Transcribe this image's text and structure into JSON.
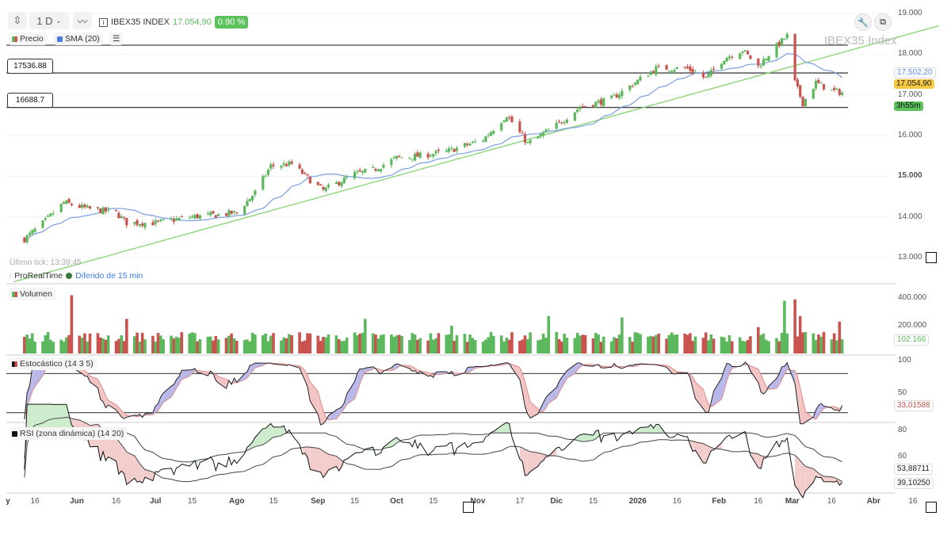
{
  "toolbar": {
    "timeframe": "1 D",
    "instrument": "IBEX35 INDEX",
    "last_price": "17.054,90",
    "change_pct": "0.90 %"
  },
  "legend": {
    "price": "Precio",
    "sma": "SMA (20)"
  },
  "watermark": "IBEX35 Index",
  "last_tick": "Último tick: 13:39:45",
  "provider": "ProRealTime",
  "delay_notice": "Diferido de 15 min",
  "level_labels": [
    "17536.88",
    "16688.7"
  ],
  "price_tags": {
    "sma": "17.502,20",
    "last": "17.054,90",
    "countdown": "3h55m"
  },
  "volume_tag": "102.166",
  "stoch_tag": "33,01588",
  "rsi_tags": [
    "53,88711",
    "39,10250"
  ],
  "colors": {
    "up": "#5cb85c",
    "down": "#c9534f",
    "sma": "#7a9fe0",
    "trend": "#8fd47a",
    "badge_green": "#5cc25c",
    "badge_yellow": "#f5c842"
  },
  "chart_data": {
    "type": "candlestick",
    "instrument": "IBEX35 Index",
    "timeframe": "1D",
    "price_axis": {
      "ticks": [
        "19.000",
        "18.000",
        "17.000",
        "16.000",
        "15.000",
        "14.000",
        "13.000"
      ],
      "values": [
        19000,
        18000,
        17000,
        16000,
        15000,
        14000,
        13000
      ],
      "range": [
        12800,
        19050
      ]
    },
    "close_path": [
      [
        "2025-05-12",
        13450
      ],
      [
        "2025-05-20",
        13900
      ],
      [
        "2025-05-27",
        14350
      ],
      [
        "2025-06-05",
        14200
      ],
      [
        "2025-06-16",
        14100
      ],
      [
        "2025-06-20",
        13850
      ],
      [
        "2025-07-01",
        13850
      ],
      [
        "2025-07-15",
        14000
      ],
      [
        "2025-07-25",
        14050
      ],
      [
        "2025-08-01",
        14100
      ],
      [
        "2025-08-08",
        14600
      ],
      [
        "2025-08-14",
        15250
      ],
      [
        "2025-08-22",
        15300
      ],
      [
        "2025-08-29",
        14900
      ],
      [
        "2025-09-03",
        14650
      ],
      [
        "2025-09-15",
        15050
      ],
      [
        "2025-09-22",
        15150
      ],
      [
        "2025-10-01",
        15450
      ],
      [
        "2025-10-10",
        15500
      ],
      [
        "2025-10-20",
        15600
      ],
      [
        "2025-11-03",
        15900
      ],
      [
        "2025-11-12",
        16500
      ],
      [
        "2025-11-20",
        15800
      ],
      [
        "2025-11-25",
        16000
      ],
      [
        "2025-12-02",
        16300
      ],
      [
        "2025-12-10",
        16700
      ],
      [
        "2025-12-22",
        16900
      ],
      [
        "2025-12-31",
        17300
      ],
      [
        "2026-01-08",
        17650
      ],
      [
        "2026-01-20",
        17650
      ],
      [
        "2026-01-27",
        17400
      ],
      [
        "2026-02-03",
        17900
      ],
      [
        "2026-02-10",
        18100
      ],
      [
        "2026-02-16",
        17700
      ],
      [
        "2026-02-20",
        18000
      ],
      [
        "2026-02-27",
        18450
      ],
      [
        "2026-03-02",
        17300
      ],
      [
        "2026-03-05",
        16800
      ],
      [
        "2026-03-10",
        17300
      ],
      [
        "2026-03-16",
        17100
      ],
      [
        "2026-03-20",
        17054.9
      ]
    ],
    "sma_period": 20,
    "horizontal_levels": [
      18220,
      17536.88,
      16688.7
    ],
    "trendline": [
      [
        "2025-05-08",
        12400
      ],
      [
        "2026-04-26",
        18700
      ]
    ],
    "volume": {
      "ticks": [
        "400.000",
        "200.000"
      ],
      "values": [
        400000,
        200000
      ],
      "base": 120000,
      "spikes": [
        [
          "2025-05-30",
          420000
        ],
        [
          "2025-06-20",
          250000
        ],
        [
          "2025-09-19",
          250000
        ],
        [
          "2025-10-22",
          200000
        ],
        [
          "2025-11-28",
          270000
        ],
        [
          "2025-12-26",
          260000
        ],
        [
          "2026-02-16",
          190000
        ],
        [
          "2026-02-26",
          380000
        ],
        [
          "2026-03-02",
          390000
        ],
        [
          "2026-03-04",
          270000
        ],
        [
          "2026-03-19",
          230000
        ]
      ],
      "last": 102166
    },
    "stochastic": {
      "name": "Estocástico (14 3 5)",
      "params": [
        14,
        3,
        5
      ],
      "ticks": [
        "100",
        "50"
      ],
      "values": [
        100,
        50
      ],
      "levels": [
        80,
        20
      ],
      "last": 33.01588
    },
    "rsi": {
      "name": "RSI (zona dinámica) (14 20)",
      "params": [
        14,
        20
      ],
      "ticks": [
        "80",
        "60"
      ],
      "values": [
        80,
        60
      ],
      "upper_last": 53.88711,
      "last": 39.1025
    },
    "x_axis": {
      "labels": [
        "y",
        "16",
        "Jun",
        "16",
        "Jul",
        "15",
        "Ago",
        "15",
        "Sep",
        "15",
        "Oct",
        "15",
        "Nov",
        "17",
        "Dic",
        "15",
        "2026",
        "16",
        "Feb",
        "16",
        "Mar",
        "16",
        "Abr",
        "16"
      ],
      "dates": [
        "2025-05-01",
        "2025-05-16",
        "2025-06-01",
        "2025-06-16",
        "2025-07-01",
        "2025-07-15",
        "2025-08-01",
        "2025-08-15",
        "2025-09-01",
        "2025-09-15",
        "2025-10-01",
        "2025-10-15",
        "2025-11-01",
        "2025-11-17",
        "2025-12-01",
        "2025-12-15",
        "2026-01-01",
        "2026-01-16",
        "2026-02-01",
        "2026-02-16",
        "2026-03-01",
        "2026-03-16",
        "2026-04-01",
        "2026-04-16"
      ]
    }
  }
}
